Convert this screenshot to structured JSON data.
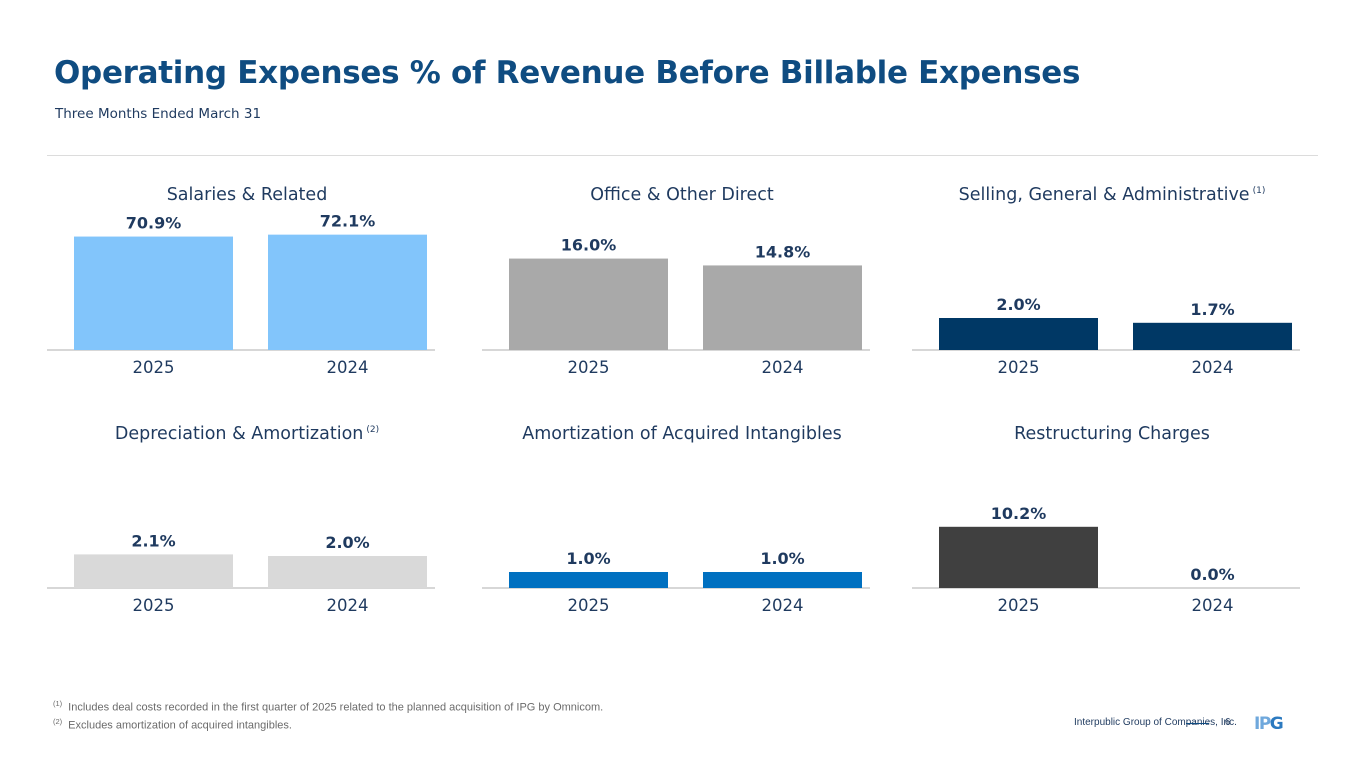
{
  "header": {
    "title": "Operating Expenses % of Revenue Before Billable Expenses",
    "subtitle": "Three Months Ended March 31"
  },
  "chart_data": [
    {
      "type": "bar",
      "title": "Salaries & Related",
      "footnote_ref": "",
      "categories": [
        "2025",
        "2024"
      ],
      "values": [
        70.9,
        72.1
      ],
      "labels": [
        "70.9%",
        "72.1%"
      ],
      "color": "#82c5fb",
      "xlabel": "",
      "ylabel": "",
      "ylim": [
        0,
        75
      ]
    },
    {
      "type": "bar",
      "title": "Office & Other Direct",
      "footnote_ref": "",
      "categories": [
        "2025",
        "2024"
      ],
      "values": [
        16.0,
        14.8
      ],
      "labels": [
        "16.0%",
        "14.8%"
      ],
      "color": "#a9a9a9",
      "xlabel": "",
      "ylabel": "",
      "ylim": [
        0,
        21
      ]
    },
    {
      "type": "bar",
      "title": "Selling, General & Administrative",
      "footnote_ref": "(1)",
      "categories": [
        "2025",
        "2024"
      ],
      "values": [
        2.0,
        1.7
      ],
      "labels": [
        "2.0%",
        "1.7%"
      ],
      "color": "#003865",
      "xlabel": "",
      "ylabel": "",
      "ylim": [
        0,
        7.5
      ]
    },
    {
      "type": "bar",
      "title": "Depreciation & Amortization",
      "footnote_ref": "(2)",
      "categories": [
        "2025",
        "2024"
      ],
      "values": [
        2.1,
        2.0
      ],
      "labels": [
        "2.1%",
        "2.0%"
      ],
      "color": "#d9d9d9",
      "xlabel": "",
      "ylabel": "",
      "ylim": [
        0,
        7.5
      ]
    },
    {
      "type": "bar",
      "title": "Amortization of Acquired Intangibles",
      "footnote_ref": "",
      "categories": [
        "2025",
        "2024"
      ],
      "values": [
        1.0,
        1.0
      ],
      "labels": [
        "1.0%",
        "1.0%"
      ],
      "color": "#0070c0",
      "xlabel": "",
      "ylabel": "",
      "ylim": [
        0,
        7.5
      ]
    },
    {
      "type": "bar",
      "title": "Restructuring Charges",
      "footnote_ref": "",
      "categories": [
        "2025",
        "2024"
      ],
      "values": [
        10.2,
        0.0
      ],
      "labels": [
        "10.2%",
        "0.0%"
      ],
      "color": "#404040",
      "xlabel": "",
      "ylabel": "",
      "ylim": [
        0,
        20
      ]
    }
  ],
  "footnotes": [
    {
      "mark": "(1)",
      "text": "Includes deal costs recorded in the first quarter of 2025 related to the planned acquisition of IPG by Omnicom."
    },
    {
      "mark": "(2)",
      "text": "Excludes amortization of acquired intangibles."
    }
  ],
  "footer": {
    "company": "Interpublic Group of Companies, Inc.",
    "page_number": "6",
    "logo_text_a": "IP",
    "logo_text_b": "G"
  },
  "colors": {
    "title": "#0f4c81",
    "label": "#1f3a5f"
  }
}
